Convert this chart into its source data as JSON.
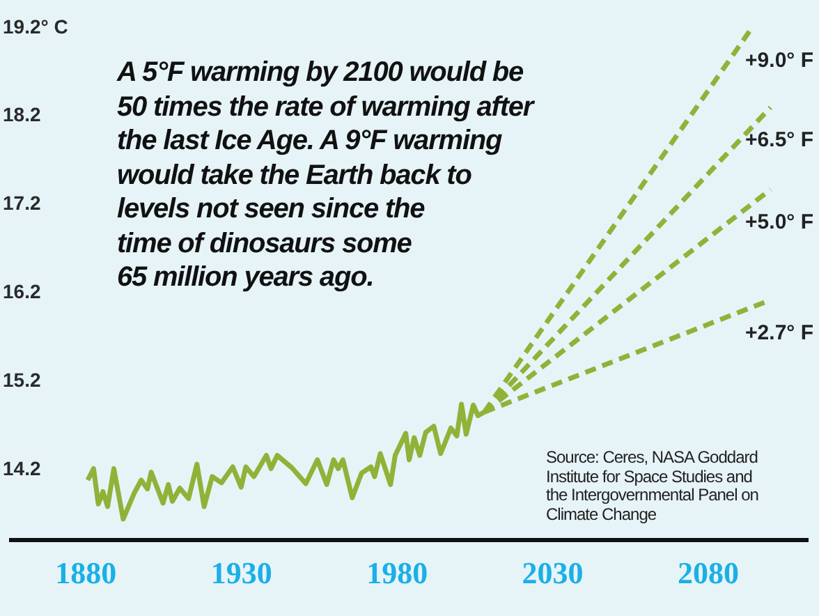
{
  "chart_data": {
    "type": "line",
    "xlim": [
      1856,
      2112
    ],
    "xticks": [
      1880,
      1930,
      1980,
      2030,
      2080
    ],
    "ylim": [
      13.4,
      19.2
    ],
    "yticks": [
      14.2,
      15.2,
      16.2,
      17.2,
      18.2,
      {
        "value": 19.2,
        "label": "19.2° C"
      }
    ],
    "grid": false,
    "legend": false,
    "marker": "none",
    "annotations": [
      "A 5°F warming by 2100 would be\n50 times the rate of warming after\nthe last Ice Age. A 9°F warming\nwould take the Earth back to\nlevels not seen since the\ntime of dinosaurs some\n65 million years ago.",
      "Source: Ceres, NASA Goddard\nInstitute for Space Studies and\nthe Intergovernmental Panel on\nClimate Change"
    ],
    "series": [
      {
        "color": "#8fb339",
        "line_style": "solid",
        "x": [
          1880.6,
          1882.5,
          1884,
          1885.5,
          1887,
          1889,
          1892,
          1895.5,
          1897.8,
          1899.8,
          1901,
          1904.8,
          1906.5,
          1907.8,
          1910.2,
          1913,
          1915.7,
          1918,
          1920.6,
          1923.6,
          1927.2,
          1929.9,
          1931.4,
          1934,
          1938,
          1939.5,
          1941.5,
          1946.2,
          1950.7,
          1954.4,
          1957.4,
          1959.6,
          1961.1,
          1962.6,
          1965.6,
          1968.6,
          1971.6,
          1972.8,
          1974.6,
          1977.9,
          1979.4,
          1982.8,
          1983.9,
          1985.5,
          1987.3,
          1989.2,
          1991.8,
          1994,
          1997.3,
          1999.2,
          2000.7,
          2002.2,
          2004.5,
          2006,
          2008
        ],
        "values": [
          14.08,
          14.21,
          13.81,
          13.95,
          13.78,
          14.21,
          13.64,
          13.93,
          14.08,
          13.98,
          14.17,
          13.82,
          14.03,
          13.84,
          13.99,
          13.87,
          14.26,
          13.78,
          14.12,
          14.05,
          14.23,
          14.0,
          14.23,
          14.12,
          14.36,
          14.21,
          14.36,
          14.22,
          14.04,
          14.31,
          14.03,
          14.31,
          14.21,
          14.31,
          13.88,
          14.16,
          14.23,
          14.12,
          14.38,
          14.03,
          14.36,
          14.61,
          14.31,
          14.56,
          14.36,
          14.62,
          14.69,
          14.38,
          14.67,
          14.58,
          14.94,
          14.6,
          14.93,
          14.81,
          14.85
        ]
      },
      {
        "name": "+9.0° F",
        "color": "#8fb339",
        "line_style": "dashed",
        "x": [
          2008,
          2094
        ],
        "values": [
          14.85,
          19.2
        ]
      },
      {
        "name": "+6.5° F",
        "color": "#8fb339",
        "line_style": "dashed",
        "x": [
          2008,
          2100
        ],
        "values": [
          14.85,
          18.3
        ]
      },
      {
        "name": "+5.0° F",
        "color": "#8fb339",
        "line_style": "dashed",
        "x": [
          2008,
          2100
        ],
        "values": [
          14.85,
          17.37
        ]
      },
      {
        "name": "+2.7° F",
        "color": "#8fb339",
        "line_style": "dashed",
        "x": [
          2008,
          2100
        ],
        "values": [
          14.85,
          16.12
        ]
      }
    ]
  }
}
